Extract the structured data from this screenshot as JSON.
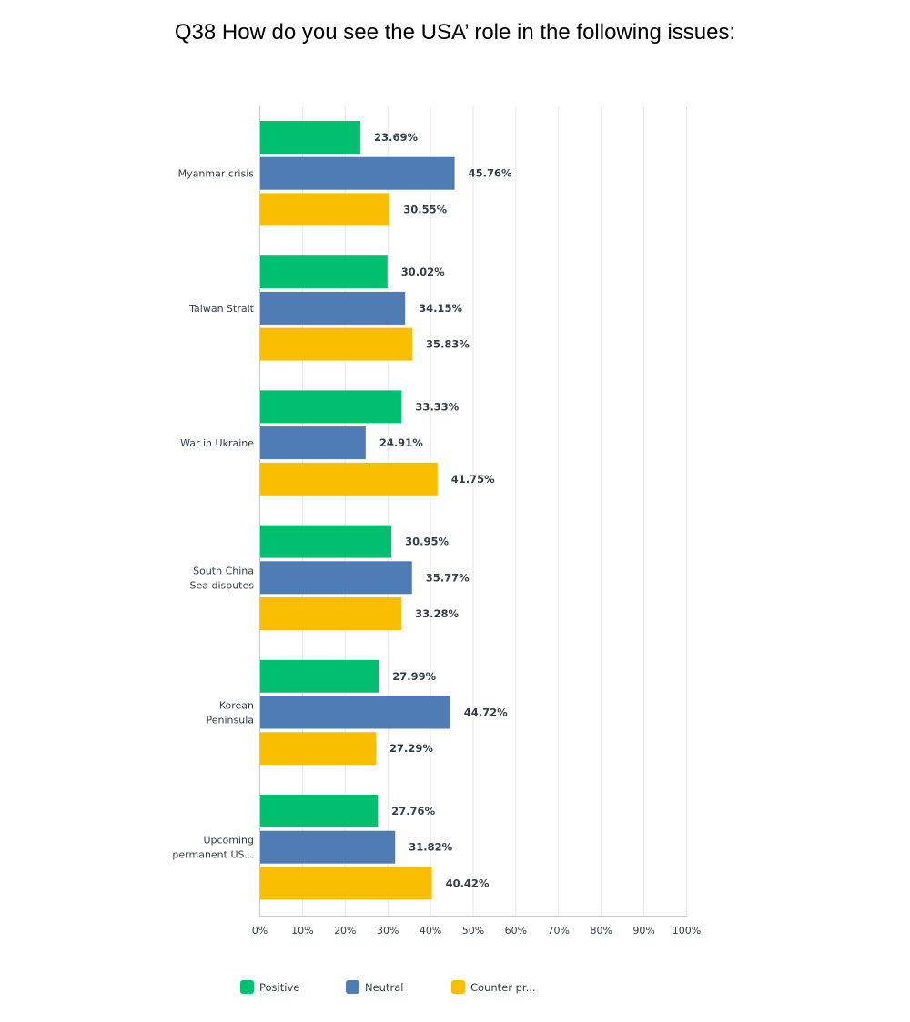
{
  "title": "Q38 How do you see the USA’ role in the following issues:",
  "chart_data": {
    "type": "bar",
    "orientation": "horizontal",
    "categories": [
      [
        "Myanmar crisis"
      ],
      [
        "Taiwan Strait"
      ],
      [
        "War in Ukraine"
      ],
      [
        "South China",
        "Sea disputes"
      ],
      [
        "Korean",
        "Peninsula"
      ],
      [
        "Upcoming",
        "permanent US..."
      ]
    ],
    "series": [
      {
        "name": "Positive",
        "color": "#00bf6f",
        "values": [
          23.69,
          30.02,
          33.33,
          30.95,
          27.99,
          27.76
        ]
      },
      {
        "name": "Neutral",
        "color": "#507cb6",
        "values": [
          45.76,
          34.15,
          24.91,
          35.77,
          44.72,
          31.82
        ]
      },
      {
        "name": "Counter pr...",
        "color": "#f9be00",
        "values": [
          30.55,
          35.83,
          41.75,
          33.28,
          27.29,
          40.42
        ]
      }
    ],
    "xlim": [
      0,
      100
    ],
    "ticks": [
      "0%",
      "10%",
      "20%",
      "30%",
      "40%",
      "50%",
      "60%",
      "70%",
      "80%",
      "90%",
      "100%"
    ],
    "value_suffix": "%",
    "grid": true,
    "legend_position": "bottom"
  }
}
